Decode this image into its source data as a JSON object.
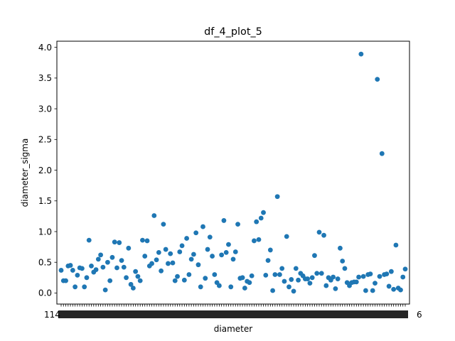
{
  "chart_data": {
    "type": "scatter",
    "title": "df_4_plot_5",
    "xlabel": "diameter",
    "ylabel": "diameter_sigma",
    "ylim": [
      -0.18,
      4.1
    ],
    "yticks": [
      "0.0",
      "0.5",
      "1.0",
      "1.5",
      "2.0",
      "2.5",
      "3.0",
      "3.5",
      "4.0"
    ],
    "ytick_values": [
      0.0,
      0.5,
      1.0,
      1.5,
      2.0,
      2.5,
      3.0,
      3.5,
      4.0
    ],
    "x_tick_label_first": "1",
    "x_tick_label_last": "6",
    "grid": false,
    "color": "#1f77b4",
    "values": [
      0.37,
      0.2,
      0.2,
      0.44,
      0.45,
      0.37,
      0.1,
      0.29,
      0.41,
      0.4,
      0.1,
      0.25,
      0.86,
      0.44,
      0.34,
      0.38,
      0.55,
      0.62,
      0.42,
      0.05,
      0.5,
      0.2,
      0.58,
      0.83,
      0.41,
      0.82,
      0.53,
      0.42,
      0.25,
      0.73,
      0.14,
      0.08,
      0.35,
      0.27,
      0.2,
      0.86,
      0.6,
      0.85,
      0.44,
      0.48,
      1.26,
      0.54,
      0.66,
      0.36,
      1.12,
      0.71,
      0.48,
      0.64,
      0.49,
      0.2,
      0.27,
      0.67,
      0.77,
      0.21,
      0.89,
      0.3,
      0.55,
      0.63,
      0.98,
      0.46,
      0.1,
      1.08,
      0.24,
      0.71,
      0.91,
      0.6,
      0.3,
      0.17,
      0.12,
      0.62,
      1.18,
      0.66,
      0.79,
      0.1,
      0.55,
      0.67,
      1.12,
      0.24,
      0.25,
      0.08,
      0.19,
      0.17,
      0.28,
      0.85,
      1.16,
      0.87,
      1.22,
      1.31,
      0.29,
      0.53,
      0.7,
      0.04,
      0.3,
      1.57,
      0.3,
      0.4,
      0.19,
      0.92,
      0.1,
      0.22,
      0.03,
      0.4,
      0.21,
      0.32,
      0.28,
      0.23,
      0.23,
      0.16,
      0.25,
      0.61,
      0.32,
      0.99,
      0.32,
      0.94,
      0.12,
      0.25,
      0.21,
      0.26,
      0.07,
      0.23,
      0.73,
      0.52,
      0.4,
      0.17,
      0.12,
      0.17,
      0.18,
      0.18,
      0.26,
      3.89,
      0.27,
      0.04,
      0.3,
      0.31,
      0.04,
      0.16,
      3.48,
      0.27,
      2.27,
      0.3,
      0.31,
      0.11,
      0.35,
      0.06,
      0.78,
      0.08,
      0.05,
      0.26,
      0.39
    ]
  }
}
